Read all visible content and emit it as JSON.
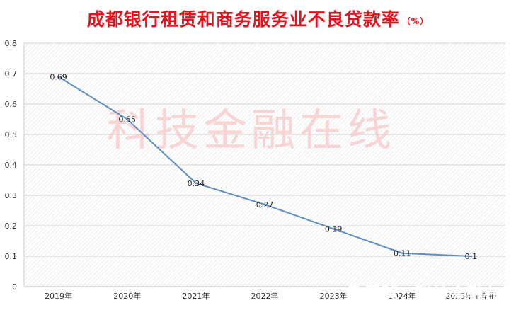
{
  "chart_data": {
    "type": "line",
    "title": "成都银行租赁和商务服务业不良贷款率",
    "title_unit": "（%）",
    "categories": [
      "2019年",
      "2020年",
      "2021年",
      "2022年",
      "2023年",
      "2024年",
      "2025年半年报"
    ],
    "values": [
      0.69,
      0.55,
      0.34,
      0.27,
      0.19,
      0.11,
      0.1
    ],
    "data_labels": [
      "0.69",
      "0.55",
      "0.34",
      "0.27",
      "0.19",
      "0.11",
      "0.1"
    ],
    "yticks": [
      "0",
      "0.1",
      "0.2",
      "0.3",
      "0.4",
      "0.5",
      "0.6",
      "0.7",
      "0.8"
    ],
    "ylim": [
      0,
      0.8
    ],
    "grid": true,
    "legend": "none",
    "line_color": "#5b8fc7",
    "title_color": "#e8121d"
  },
  "watermark": {
    "text": "科技金融在线",
    "footer_text": "雪球：科技金融在线"
  }
}
